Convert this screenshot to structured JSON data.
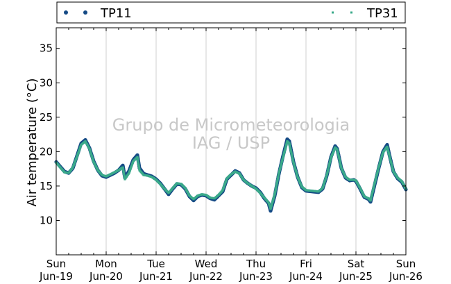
{
  "chart_data": {
    "type": "scatter",
    "ylabel": "Air temperature (°C)",
    "ylim": [
      5,
      38
    ],
    "yticks": [
      10,
      15,
      20,
      25,
      30,
      35
    ],
    "xlim": [
      "2016-06-19",
      "2016-06-26"
    ],
    "xticks": [
      {
        "day": "Sun",
        "date": "Jun-19"
      },
      {
        "day": "Mon",
        "date": "Jun-20"
      },
      {
        "day": "Tue",
        "date": "Jun-21"
      },
      {
        "day": "Wed",
        "date": "Jun-22"
      },
      {
        "day": "Thu",
        "date": "Jun-23"
      },
      {
        "day": "Fri",
        "date": "Jun-24"
      },
      {
        "day": "Sat",
        "date": "Jun-25"
      },
      {
        "day": "Sun",
        "date": "Jun-26"
      }
    ],
    "grid": "vertical",
    "legend_placement": "top, outside",
    "watermark": [
      "Grupo de Micrometeorologia",
      "IAG / USP"
    ],
    "series": [
      {
        "name": "TP11",
        "color": "#154a85",
        "marker": "dot",
        "points": [
          [
            "2016-06-19 00:00",
            18.5
          ],
          [
            "2016-06-19 02:00",
            17.8
          ],
          [
            "2016-06-19 04:00",
            17.1
          ],
          [
            "2016-06-19 06:00",
            16.9
          ],
          [
            "2016-06-19 08:00",
            17.6
          ],
          [
            "2016-06-19 10:00",
            19.4
          ],
          [
            "2016-06-19 12:00",
            21.2
          ],
          [
            "2016-06-19 14:00",
            21.7
          ],
          [
            "2016-06-19 16:00",
            20.5
          ],
          [
            "2016-06-19 18:00",
            18.6
          ],
          [
            "2016-06-19 20:00",
            17.3
          ],
          [
            "2016-06-19 22:00",
            16.5
          ],
          [
            "2016-06-20 00:00",
            16.3
          ],
          [
            "2016-06-20 02:00",
            16.6
          ],
          [
            "2016-06-20 04:00",
            16.9
          ],
          [
            "2016-06-20 06:00",
            17.3
          ],
          [
            "2016-06-20 08:00",
            18.0
          ],
          [
            "2016-06-20 09:00",
            16.2
          ],
          [
            "2016-06-20 11:00",
            17.2
          ],
          [
            "2016-06-20 13:00",
            18.8
          ],
          [
            "2016-06-20 15:00",
            19.5
          ],
          [
            "2016-06-20 16:00",
            17.6
          ],
          [
            "2016-06-20 18:00",
            16.8
          ],
          [
            "2016-06-20 20:00",
            16.6
          ],
          [
            "2016-06-20 22:00",
            16.4
          ],
          [
            "2016-06-21 00:00",
            16.0
          ],
          [
            "2016-06-21 02:00",
            15.4
          ],
          [
            "2016-06-21 04:00",
            14.6
          ],
          [
            "2016-06-21 06:00",
            13.8
          ],
          [
            "2016-06-21 08:00",
            14.6
          ],
          [
            "2016-06-21 10:00",
            15.3
          ],
          [
            "2016-06-21 12:00",
            15.2
          ],
          [
            "2016-06-21 14:00",
            14.6
          ],
          [
            "2016-06-21 16:00",
            13.5
          ],
          [
            "2016-06-21 18:00",
            12.9
          ],
          [
            "2016-06-21 20:00",
            13.5
          ],
          [
            "2016-06-21 22:00",
            13.7
          ],
          [
            "2016-06-22 00:00",
            13.6
          ],
          [
            "2016-06-22 02:00",
            13.2
          ],
          [
            "2016-06-22 04:00",
            13.0
          ],
          [
            "2016-06-22 06:00",
            13.6
          ],
          [
            "2016-06-22 08:00",
            14.2
          ],
          [
            "2016-06-22 10:00",
            16.0
          ],
          [
            "2016-06-22 12:00",
            16.6
          ],
          [
            "2016-06-22 14:00",
            17.2
          ],
          [
            "2016-06-22 16:00",
            16.9
          ],
          [
            "2016-06-22 18:00",
            15.9
          ],
          [
            "2016-06-22 20:00",
            15.4
          ],
          [
            "2016-06-22 22:00",
            15.0
          ],
          [
            "2016-06-23 00:00",
            14.7
          ],
          [
            "2016-06-23 02:00",
            14.1
          ],
          [
            "2016-06-23 04:00",
            13.2
          ],
          [
            "2016-06-23 06:00",
            12.5
          ],
          [
            "2016-06-23 07:00",
            11.4
          ],
          [
            "2016-06-23 09:00",
            13.6
          ],
          [
            "2016-06-23 11:00",
            16.8
          ],
          [
            "2016-06-23 13:00",
            19.4
          ],
          [
            "2016-06-23 15:00",
            21.8
          ],
          [
            "2016-06-23 16:00",
            21.5
          ],
          [
            "2016-06-23 18:00",
            18.5
          ],
          [
            "2016-06-23 20:00",
            16.3
          ],
          [
            "2016-06-23 22:00",
            14.8
          ],
          [
            "2016-06-24 00:00",
            14.3
          ],
          [
            "2016-06-24 03:00",
            14.2
          ],
          [
            "2016-06-24 06:00",
            14.1
          ],
          [
            "2016-06-24 08:00",
            14.6
          ],
          [
            "2016-06-24 10:00",
            16.5
          ],
          [
            "2016-06-24 12:00",
            19.2
          ],
          [
            "2016-06-24 14:00",
            20.8
          ],
          [
            "2016-06-24 15:00",
            20.4
          ],
          [
            "2016-06-24 17:00",
            17.6
          ],
          [
            "2016-06-24 19:00",
            16.2
          ],
          [
            "2016-06-24 21:00",
            15.8
          ],
          [
            "2016-06-24 23:00",
            15.9
          ],
          [
            "2016-06-25 00:00",
            15.7
          ],
          [
            "2016-06-25 02:00",
            14.6
          ],
          [
            "2016-06-25 04:00",
            13.4
          ],
          [
            "2016-06-25 06:00",
            13.1
          ],
          [
            "2016-06-25 07:00",
            12.7
          ],
          [
            "2016-06-25 09:00",
            15.2
          ],
          [
            "2016-06-25 11:00",
            17.7
          ],
          [
            "2016-06-25 13:00",
            20.0
          ],
          [
            "2016-06-25 15:00",
            21.0
          ],
          [
            "2016-06-25 16:00",
            19.6
          ],
          [
            "2016-06-25 18:00",
            17.1
          ],
          [
            "2016-06-25 20:00",
            16.1
          ],
          [
            "2016-06-25 22:00",
            15.6
          ],
          [
            "2016-06-26 00:00",
            14.5
          ]
        ]
      },
      {
        "name": "TP31",
        "color": "#3aaa8a",
        "marker": "square",
        "points": [
          [
            "2016-06-19 00:00",
            18.4
          ],
          [
            "2016-06-19 02:00",
            17.7
          ],
          [
            "2016-06-19 04:00",
            17.0
          ],
          [
            "2016-06-19 06:00",
            16.9
          ],
          [
            "2016-06-19 08:00",
            17.7
          ],
          [
            "2016-06-19 10:00",
            19.3
          ],
          [
            "2016-06-19 12:00",
            21.0
          ],
          [
            "2016-06-19 14:00",
            21.5
          ],
          [
            "2016-06-19 16:00",
            20.4
          ],
          [
            "2016-06-19 18:00",
            18.5
          ],
          [
            "2016-06-19 20:00",
            17.3
          ],
          [
            "2016-06-19 22:00",
            16.6
          ],
          [
            "2016-06-20 00:00",
            16.4
          ],
          [
            "2016-06-20 02:00",
            16.7
          ],
          [
            "2016-06-20 04:00",
            17.0
          ],
          [
            "2016-06-20 06:00",
            17.3
          ],
          [
            "2016-06-20 08:00",
            17.7
          ],
          [
            "2016-06-20 09:00",
            16.0
          ],
          [
            "2016-06-20 11:00",
            16.9
          ],
          [
            "2016-06-20 13:00",
            18.6
          ],
          [
            "2016-06-20 15:00",
            19.2
          ],
          [
            "2016-06-20 16:00",
            17.3
          ],
          [
            "2016-06-20 18:00",
            16.6
          ],
          [
            "2016-06-20 20:00",
            16.5
          ],
          [
            "2016-06-20 22:00",
            16.3
          ],
          [
            "2016-06-21 00:00",
            15.9
          ],
          [
            "2016-06-21 02:00",
            15.3
          ],
          [
            "2016-06-21 04:00",
            14.6
          ],
          [
            "2016-06-21 06:00",
            14.0
          ],
          [
            "2016-06-21 08:00",
            14.7
          ],
          [
            "2016-06-21 10:00",
            15.4
          ],
          [
            "2016-06-21 12:00",
            15.3
          ],
          [
            "2016-06-21 14:00",
            14.7
          ],
          [
            "2016-06-21 16:00",
            13.6
          ],
          [
            "2016-06-21 18:00",
            13.1
          ],
          [
            "2016-06-21 20:00",
            13.6
          ],
          [
            "2016-06-21 22:00",
            13.8
          ],
          [
            "2016-06-22 00:00",
            13.7
          ],
          [
            "2016-06-22 02:00",
            13.3
          ],
          [
            "2016-06-22 04:00",
            13.2
          ],
          [
            "2016-06-22 06:00",
            13.7
          ],
          [
            "2016-06-22 08:00",
            14.4
          ],
          [
            "2016-06-22 10:00",
            16.1
          ],
          [
            "2016-06-22 12:00",
            16.7
          ],
          [
            "2016-06-22 14:00",
            17.1
          ],
          [
            "2016-06-22 16:00",
            16.8
          ],
          [
            "2016-06-22 18:00",
            15.9
          ],
          [
            "2016-06-22 20:00",
            15.4
          ],
          [
            "2016-06-22 22:00",
            15.0
          ],
          [
            "2016-06-23 00:00",
            14.6
          ],
          [
            "2016-06-23 02:00",
            14.0
          ],
          [
            "2016-06-23 04:00",
            13.3
          ],
          [
            "2016-06-23 06:00",
            12.6
          ],
          [
            "2016-06-23 07:00",
            11.7
          ],
          [
            "2016-06-23 09:00",
            13.8
          ],
          [
            "2016-06-23 11:00",
            16.9
          ],
          [
            "2016-06-23 13:00",
            19.2
          ],
          [
            "2016-06-23 15:00",
            21.5
          ],
          [
            "2016-06-23 16:00",
            21.2
          ],
          [
            "2016-06-23 18:00",
            18.4
          ],
          [
            "2016-06-23 20:00",
            16.3
          ],
          [
            "2016-06-23 22:00",
            14.9
          ],
          [
            "2016-06-24 00:00",
            14.4
          ],
          [
            "2016-06-24 03:00",
            14.3
          ],
          [
            "2016-06-24 06:00",
            14.2
          ],
          [
            "2016-06-24 08:00",
            14.7
          ],
          [
            "2016-06-24 10:00",
            16.6
          ],
          [
            "2016-06-24 12:00",
            19.1
          ],
          [
            "2016-06-24 14:00",
            20.6
          ],
          [
            "2016-06-24 15:00",
            20.3
          ],
          [
            "2016-06-24 17:00",
            17.6
          ],
          [
            "2016-06-24 19:00",
            16.3
          ],
          [
            "2016-06-24 21:00",
            15.9
          ],
          [
            "2016-06-24 23:00",
            15.9
          ],
          [
            "2016-06-25 00:00",
            15.8
          ],
          [
            "2016-06-25 02:00",
            14.7
          ],
          [
            "2016-06-25 04:00",
            13.5
          ],
          [
            "2016-06-25 06:00",
            13.2
          ],
          [
            "2016-06-25 07:00",
            12.9
          ],
          [
            "2016-06-25 09:00",
            15.4
          ],
          [
            "2016-06-25 11:00",
            17.8
          ],
          [
            "2016-06-25 13:00",
            19.9
          ],
          [
            "2016-06-25 15:00",
            20.7
          ],
          [
            "2016-06-25 16:00",
            19.5
          ],
          [
            "2016-06-25 18:00",
            17.1
          ],
          [
            "2016-06-25 20:00",
            16.2
          ],
          [
            "2016-06-25 22:00",
            15.7
          ],
          [
            "2016-06-26 00:00",
            14.6
          ]
        ]
      }
    ]
  }
}
